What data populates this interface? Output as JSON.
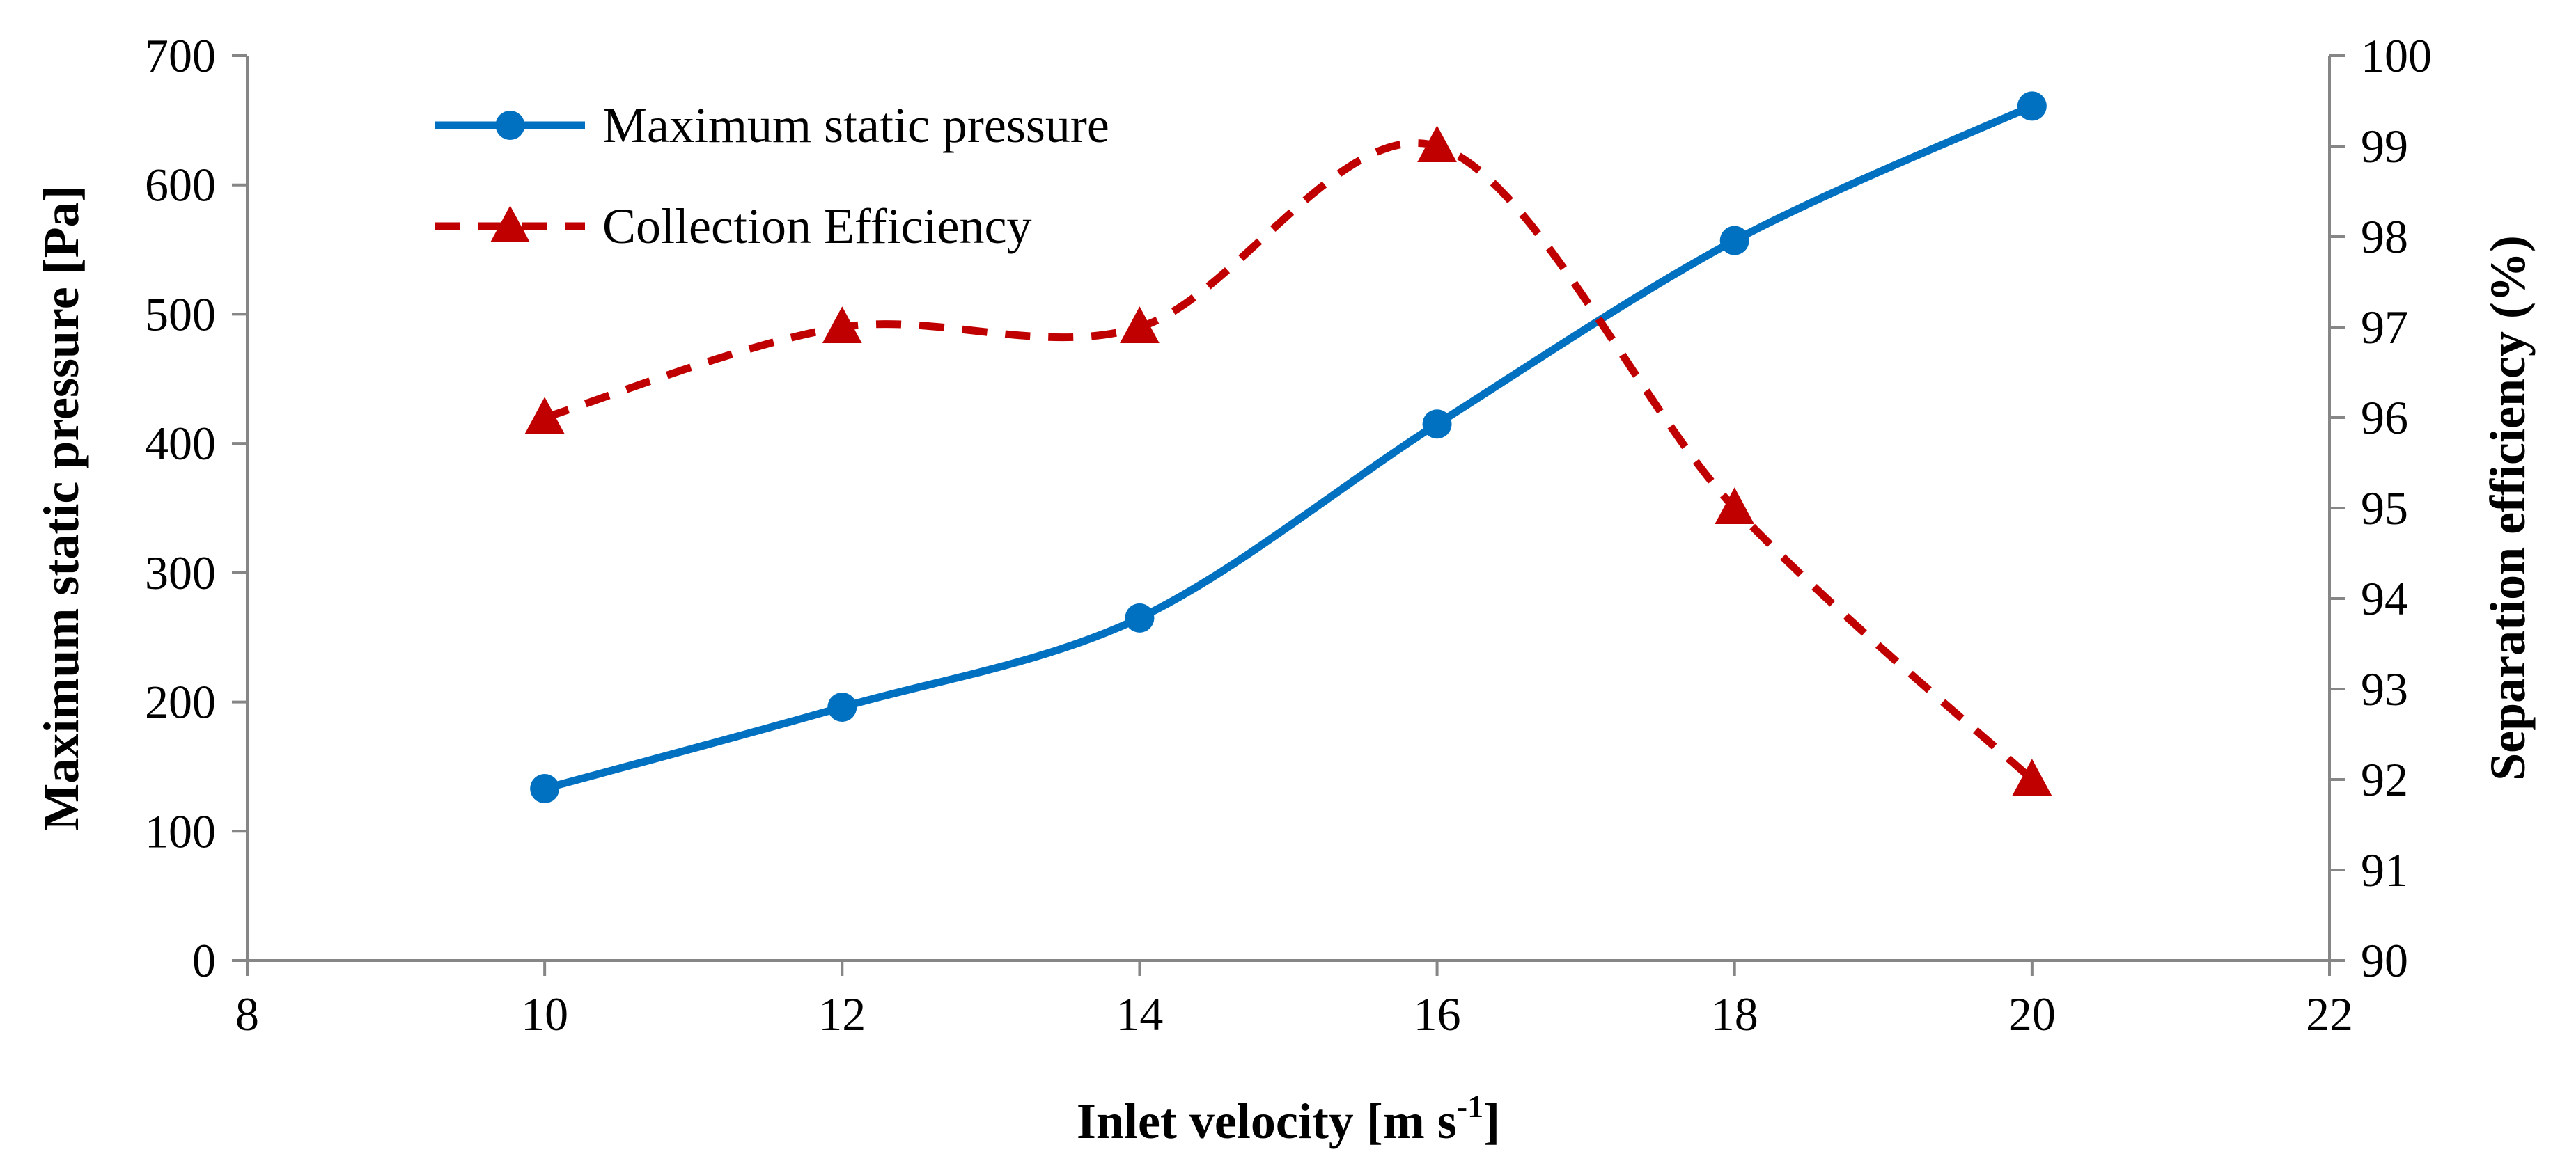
{
  "chart_data": {
    "type": "line",
    "x": [
      10,
      12,
      14,
      16,
      18,
      20
    ],
    "xlabel": "Inlet velocity [m s",
    "xlabel_sup": "-1",
    "xlabel_end": "]",
    "xlim": [
      8,
      22
    ],
    "xticks": [
      8,
      10,
      12,
      14,
      16,
      18,
      20,
      22
    ],
    "ylabel": "Maximum static pressure [Pa]",
    "ylim": [
      0,
      700
    ],
    "yticks": [
      0,
      100,
      200,
      300,
      400,
      500,
      600,
      700
    ],
    "y2label": "Separation efficiency (%)",
    "y2lim": [
      90,
      100
    ],
    "y2ticks": [
      90,
      91,
      92,
      93,
      94,
      95,
      96,
      97,
      98,
      99,
      100
    ],
    "legend_position": "top-left",
    "series": [
      {
        "name": "Maximum static pressure",
        "axis": "left",
        "values": [
          133,
          196,
          265,
          415,
          557,
          661
        ],
        "color": "#0070c0",
        "marker": "circle",
        "line_style": "solid",
        "smooth": true
      },
      {
        "name": "Collection Efficiency",
        "axis": "right",
        "values": [
          96,
          97,
          97,
          99,
          95,
          92
        ],
        "color": "#c00000",
        "marker": "triangle",
        "line_style": "dashed",
        "smooth": true
      }
    ]
  }
}
